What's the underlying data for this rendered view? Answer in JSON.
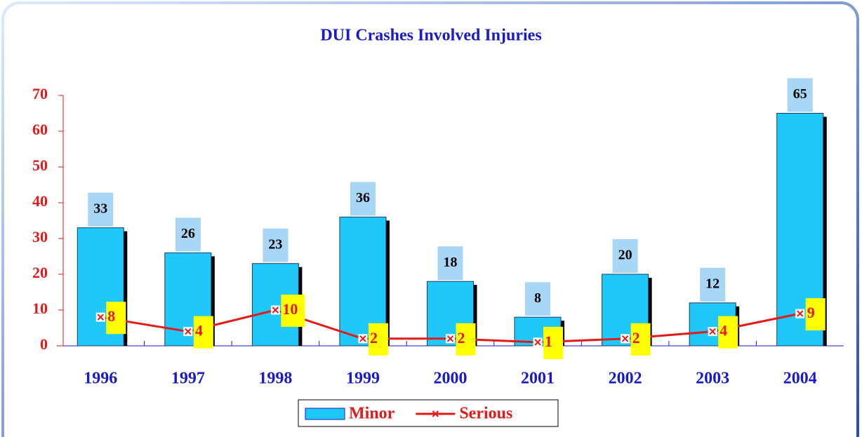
{
  "chart_data": {
    "type": "bar",
    "title": "DUI Crashes Involved Injuries",
    "categories": [
      "1996",
      "1997",
      "1998",
      "1999",
      "2000",
      "2001",
      "2002",
      "2003",
      "2004"
    ],
    "series": [
      {
        "name": "Minor",
        "type": "bar",
        "color": "#1ec8f8",
        "values": [
          33,
          26,
          23,
          36,
          18,
          8,
          20,
          12,
          65
        ]
      },
      {
        "name": "Serious",
        "type": "line",
        "color": "#e41a1a",
        "values": [
          8,
          4,
          10,
          2,
          2,
          1,
          2,
          4,
          9
        ]
      }
    ],
    "ylim": [
      0,
      70
    ],
    "yticks": [
      0,
      10,
      20,
      30,
      40,
      50,
      60,
      70
    ],
    "legend": "bottom"
  }
}
